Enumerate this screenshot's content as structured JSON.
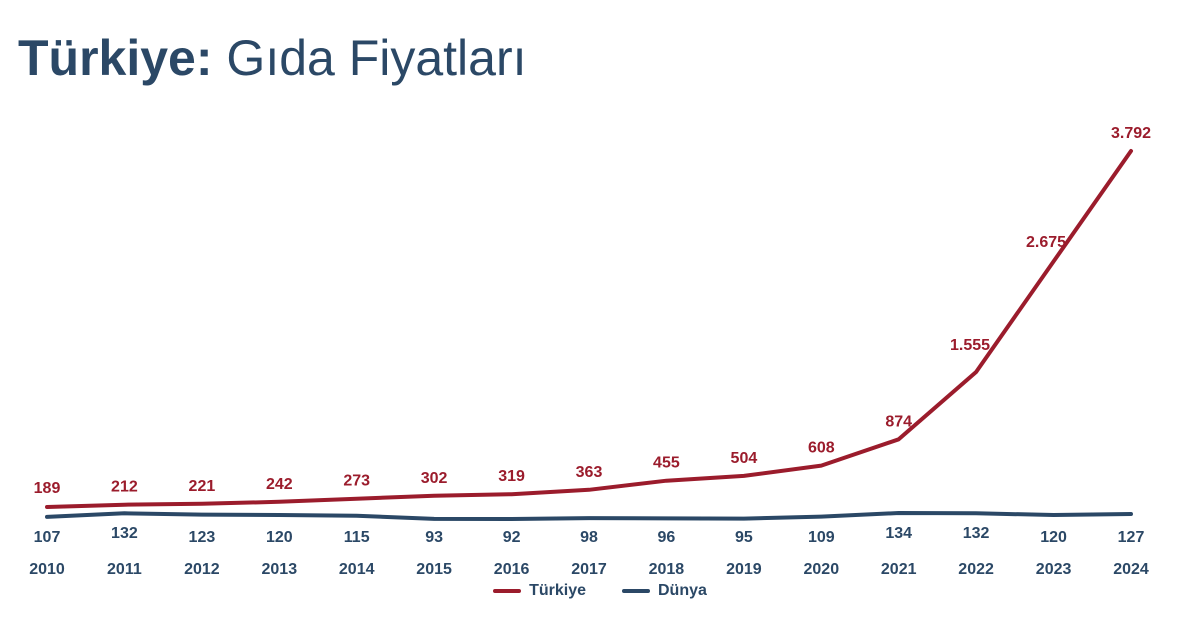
{
  "title": {
    "bold": "Türkiye:",
    "light": "Gıda Fiyatları"
  },
  "colors": {
    "turkiye": "#9b1c2c",
    "dunya": "#2b4866",
    "title": "#2b4866"
  },
  "chart_data": {
    "type": "line",
    "title": "Türkiye: Gıda Fiyatları",
    "x": [
      "2010",
      "2011",
      "2012",
      "2013",
      "2014",
      "2015",
      "2016",
      "2017",
      "2018",
      "2019",
      "2020",
      "2021",
      "2022",
      "2023",
      "2024"
    ],
    "series": [
      {
        "name": "Türkiye",
        "values": [
          189,
          212,
          221,
          242,
          273,
          302,
          319,
          363,
          455,
          504,
          608,
          874,
          1555,
          2675,
          3792
        ],
        "labels": [
          "189",
          "212",
          "221",
          "242",
          "273",
          "302",
          "319",
          "363",
          "455",
          "504",
          "608",
          "874",
          "1.555",
          "2.675",
          "3.792"
        ]
      },
      {
        "name": "Dünya",
        "values": [
          107,
          132,
          123,
          120,
          115,
          93,
          92,
          98,
          96,
          95,
          109,
          134,
          132,
          120,
          127
        ],
        "labels": [
          "107",
          "132",
          "123",
          "120",
          "115",
          "93",
          "92",
          "98",
          "96",
          "95",
          "109",
          "134",
          "132",
          "120",
          "127"
        ]
      }
    ],
    "grid": false,
    "legend_position": "bottom-center"
  }
}
